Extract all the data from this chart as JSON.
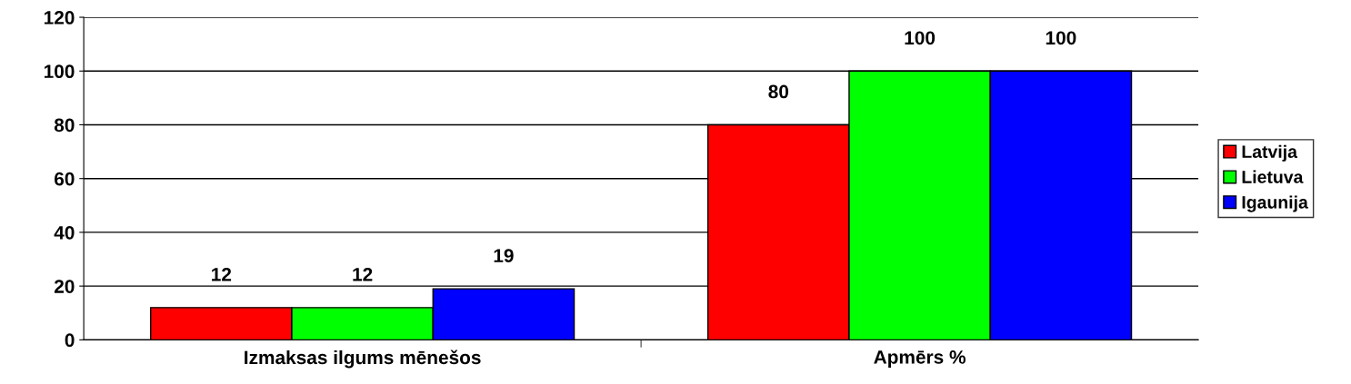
{
  "chart_data": {
    "type": "bar",
    "categories": [
      "Izmaksas ilgums mēnešos",
      "Apmērs %"
    ],
    "series": [
      {
        "name": "Latvija",
        "color": "#ff0000",
        "values": [
          12,
          80
        ]
      },
      {
        "name": "Lietuva",
        "color": "#00ff00",
        "values": [
          12,
          100
        ]
      },
      {
        "name": "Igaunija",
        "color": "#0000ff",
        "values": [
          19,
          100
        ]
      }
    ],
    "ylim": [
      0,
      120
    ],
    "yticks": [
      0,
      20,
      40,
      60,
      80,
      100,
      120
    ],
    "grid": "y",
    "legend": "right",
    "data_labels": true
  }
}
